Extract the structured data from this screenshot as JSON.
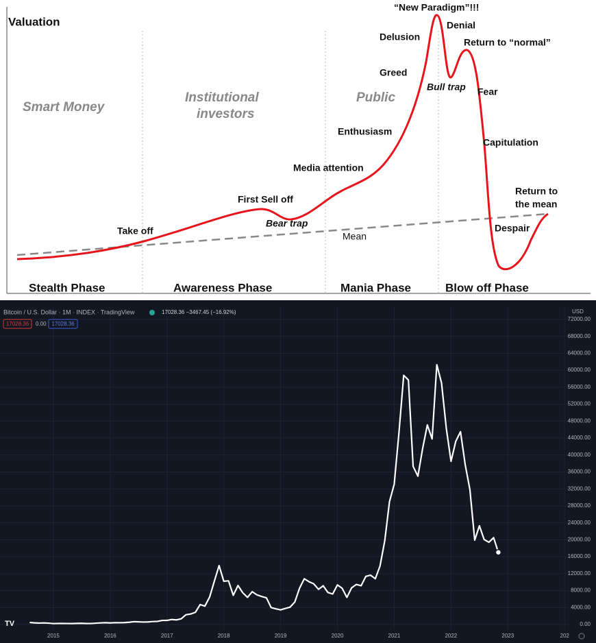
{
  "diagram": {
    "valuation": "Valuation",
    "groups": {
      "smart_money": "Smart Money",
      "institutional": [
        "Institutional",
        "investors"
      ],
      "public": "Public"
    },
    "phases": [
      "Stealth Phase",
      "Awareness Phase",
      "Mania Phase",
      "Blow off Phase"
    ],
    "labels": {
      "take_off": "Take off",
      "first_sell_off": "First Sell off",
      "bear_trap": "Bear trap",
      "media_attention": "Media attention",
      "enthusiasm": "Enthusiasm",
      "greed": "Greed",
      "delusion": "Delusion",
      "new_paradigm": "“New Paradigm”!!!",
      "denial": "Denial",
      "return_to_normal": "Return to “normal”",
      "bull_trap": "Bull trap",
      "fear": "Fear",
      "capitulation": "Capitulation",
      "return_to_the_mean": [
        "Return to",
        "the mean"
      ],
      "despair": "Despair",
      "mean": "Mean"
    }
  },
  "chart_data": {
    "type": "line",
    "title": "Bitcoin / U.S. Dollar · 1M · INDEX · TradingView",
    "subtitle": "17028.36 −3467.45 (−16.92%)",
    "badges": [
      "17028.36",
      "0.00",
      "17028.36"
    ],
    "currency": "USD",
    "color": "#ffffff",
    "grid": true,
    "x": [
      2014.583,
      2014.667,
      2014.75,
      2014.833,
      2014.917,
      2015,
      2015.083,
      2015.167,
      2015.25,
      2015.333,
      2015.417,
      2015.5,
      2015.583,
      2015.667,
      2015.75,
      2015.833,
      2015.917,
      2016,
      2016.083,
      2016.167,
      2016.25,
      2016.333,
      2016.417,
      2016.5,
      2016.583,
      2016.667,
      2016.75,
      2016.833,
      2016.917,
      2017,
      2017.083,
      2017.167,
      2017.25,
      2017.333,
      2017.417,
      2017.5,
      2017.583,
      2017.667,
      2017.75,
      2017.833,
      2017.917,
      2018,
      2018.083,
      2018.167,
      2018.25,
      2018.333,
      2018.417,
      2018.5,
      2018.583,
      2018.667,
      2018.75,
      2018.833,
      2018.917,
      2019,
      2019.083,
      2019.167,
      2019.25,
      2019.333,
      2019.417,
      2019.5,
      2019.583,
      2019.667,
      2019.75,
      2019.833,
      2019.917,
      2020,
      2020.083,
      2020.167,
      2020.25,
      2020.333,
      2020.417,
      2020.5,
      2020.583,
      2020.667,
      2020.75,
      2020.833,
      2020.917,
      2021,
      2021.083,
      2021.167,
      2021.25,
      2021.333,
      2021.417,
      2021.5,
      2021.583,
      2021.667,
      2021.75,
      2021.833,
      2021.917,
      2022,
      2022.083,
      2022.167,
      2022.25,
      2022.333,
      2022.417,
      2022.5,
      2022.583,
      2022.667,
      2022.75,
      2022.833
    ],
    "values": [
      480,
      386,
      338,
      378,
      320,
      217,
      254,
      244,
      236,
      230,
      263,
      284,
      230,
      236,
      314,
      377,
      430,
      368,
      437,
      416,
      448,
      531,
      673,
      624,
      575,
      608,
      700,
      742,
      964,
      970,
      1190,
      1080,
      1348,
      2300,
      2480,
      2875,
      4700,
      4340,
      6470,
      10200,
      13900,
      10200,
      10300,
      6900,
      9200,
      7500,
      6400,
      7730,
      7000,
      6600,
      6300,
      4000,
      3700,
      3450,
      3800,
      4100,
      5300,
      8550,
      10800,
      10100,
      9600,
      8300,
      9150,
      7550,
      7200,
      9350,
      8550,
      6400,
      8650,
      9450,
      9150,
      11350,
      11650,
      10800,
      13800,
      19700,
      29000,
      33100,
      45200,
      58800,
      57700,
      37300,
      35000,
      41500,
      47100,
      43800,
      61300,
      57000,
      46300,
      38500,
      43200,
      45500,
      37700,
      31800,
      19900,
      23300,
      20050,
      19400,
      20500,
      17028.36
    ],
    "xlim": [
      2014.06,
      2024.07
    ],
    "xticks": [
      2015,
      2016,
      2017,
      2018,
      2019,
      2020,
      2021,
      2022,
      2023,
      {
        "value": 2024,
        "label": "202"
      }
    ],
    "ylim": [
      -1130,
      74900
    ],
    "yticks": [
      {
        "value": 0,
        "label": "0.00"
      },
      {
        "value": 4000,
        "label": "4000.00"
      },
      {
        "value": 8000,
        "label": "8000.00"
      },
      {
        "value": 12000,
        "label": "12000.00"
      },
      {
        "value": 16000,
        "label": "16000.00"
      },
      {
        "value": 20000,
        "label": "20000.00"
      },
      {
        "value": 24000,
        "label": "24000.00"
      },
      {
        "value": 28000,
        "label": "28000.00"
      },
      {
        "value": 32000,
        "label": "32000.00"
      },
      {
        "value": 36000,
        "label": "36000.00"
      },
      {
        "value": 40000,
        "label": "40000.00"
      },
      {
        "value": 44000,
        "label": "44000.00"
      },
      {
        "value": 48000,
        "label": "48000.00"
      },
      {
        "value": 52000,
        "label": "52000.00"
      },
      {
        "value": 56000,
        "label": "56000.00"
      },
      {
        "value": 60000,
        "label": "60000.00"
      },
      {
        "value": 64000,
        "label": "64000.00"
      },
      {
        "value": 68000,
        "label": "68000.00"
      },
      {
        "value": 72000,
        "label": "72000.00"
      }
    ]
  }
}
